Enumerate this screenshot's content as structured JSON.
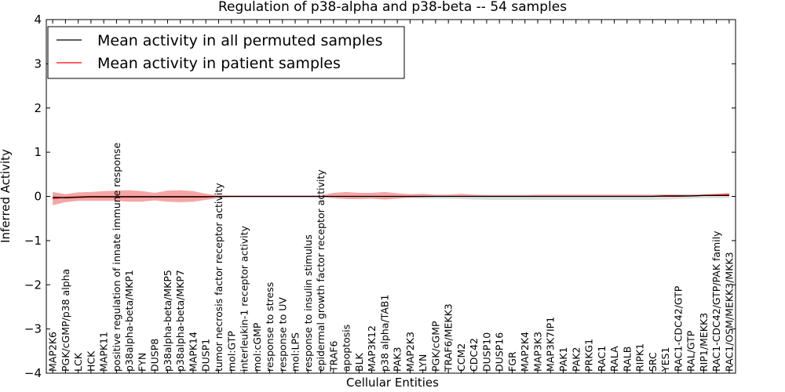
{
  "chart_data": {
    "type": "line",
    "title": "Regulation of p38-alpha and p38-beta -- 54 samples",
    "xlabel": "Cellular Entities",
    "ylabel": "Inferred Activity",
    "ylim": [
      -4,
      4
    ],
    "yticks": [
      -4,
      -3,
      -2,
      -1,
      0,
      1,
      2,
      3,
      4
    ],
    "ytick_labels": [
      "−4",
      "−3",
      "−2",
      "−1",
      "0",
      "1",
      "2",
      "3",
      "4"
    ],
    "legend_position": "upper-left",
    "categories": [
      "MAP2K6",
      "PGK/cGMP/p38 alpha",
      "LCK",
      "HCK",
      "MAPK11",
      "positive regulation of innate immune response",
      "p38alpha-beta/MKP1",
      "FYN",
      "DUSP8",
      "p38alpha-beta/MKP5",
      "p38alpha-beta/MKP7",
      "MAPK14",
      "DUSP1",
      "tumor necrosis factor receptor activity",
      "mol:GTP",
      "interleukin-1 receptor activity",
      "mol:cGMP",
      "response to stress",
      "response to UV",
      "mol:LPS",
      "response to insulin stimulus",
      "epidermal growth factor receptor activity",
      "TRAF6",
      "apoptosis",
      "BLK",
      "MAP3K12",
      "p38 alpha/TAB1",
      "PAK3",
      "MAP2K3",
      "LYN",
      "PGK/cGMP",
      "TRAF6/MEKK3",
      "CCM2",
      "CDC42",
      "DUSP10",
      "DUSP16",
      "FGR",
      "MAP2K4",
      "MAP3K3",
      "MAP3K7IP1",
      "PAK1",
      "PAK2",
      "PRKG1",
      "RAC1",
      "RALA",
      "RALB",
      "RIPK1",
      "SRC",
      "YES1",
      "RAC1-CDC42/GTP",
      "RAL/GTP",
      "RIP1/MEKK3",
      "RAC1-CDC42/GTP/PAK family",
      "RAC1/OSM/MEKK3/MKK3"
    ],
    "series": [
      {
        "name": "Mean activity in all permuted samples",
        "color": "#000000",
        "band_color": "#b8b8b8",
        "values": [
          -0.02,
          -0.03,
          -0.02,
          -0.01,
          -0.01,
          -0.01,
          -0.01,
          -0.01,
          -0.01,
          -0.01,
          -0.01,
          -0.01,
          -0.01,
          0,
          0,
          0,
          0,
          0,
          0,
          0,
          0,
          0,
          0,
          0,
          0,
          0,
          0,
          0,
          0,
          0,
          0,
          0,
          0,
          0,
          0,
          0,
          0,
          0,
          0,
          0,
          0,
          0,
          0,
          0,
          0,
          0,
          0,
          0,
          0.01,
          0.01,
          0.01,
          0.02,
          0.02,
          0.02
        ],
        "band_lower": [
          -0.06,
          -0.06,
          -0.05,
          -0.04,
          -0.04,
          -0.04,
          -0.04,
          -0.03,
          -0.03,
          -0.03,
          -0.03,
          -0.03,
          -0.03,
          -0.02,
          -0.02,
          -0.02,
          -0.02,
          -0.02,
          -0.02,
          -0.02,
          -0.02,
          -0.02,
          -0.02,
          -0.02,
          -0.02,
          -0.02,
          -0.02,
          -0.03,
          -0.04,
          -0.05,
          -0.05,
          -0.05,
          -0.06,
          -0.07,
          -0.08,
          -0.08,
          -0.08,
          -0.08,
          -0.08,
          -0.08,
          -0.08,
          -0.08,
          -0.08,
          -0.08,
          -0.08,
          -0.08,
          -0.08,
          -0.08,
          -0.07,
          -0.06,
          -0.05,
          -0.04,
          -0.04,
          -0.04
        ],
        "band_upper": [
          0.02,
          0.02,
          0.02,
          0.02,
          0.02,
          0.02,
          0.02,
          0.02,
          0.02,
          0.02,
          0.02,
          0.02,
          0.02,
          0.02,
          0.02,
          0.02,
          0.02,
          0.02,
          0.02,
          0.02,
          0.02,
          0.02,
          0.02,
          0.02,
          0.02,
          0.02,
          0.02,
          0.02,
          0.02,
          0.02,
          0.02,
          0.02,
          0.02,
          0.03,
          0.03,
          0.03,
          0.03,
          0.03,
          0.03,
          0.03,
          0.03,
          0.03,
          0.03,
          0.03,
          0.03,
          0.03,
          0.03,
          0.03,
          0.04,
          0.04,
          0.04,
          0.05,
          0.05,
          0.05
        ]
      },
      {
        "name": "Mean activity in patient samples",
        "color": "#ff0000",
        "band_color": "#f08080",
        "values": [
          -0.05,
          -0.02,
          -0.01,
          0,
          0,
          0,
          0,
          0,
          0,
          0,
          0,
          0,
          0,
          0,
          0,
          0,
          0,
          0,
          0,
          0,
          0,
          0,
          0,
          0,
          0,
          0,
          0,
          0,
          0,
          0,
          0,
          0,
          0,
          0,
          0,
          0,
          0,
          0,
          0,
          0,
          0,
          0,
          0,
          0,
          0,
          0,
          0,
          0,
          0,
          0,
          0.01,
          0.02,
          0.03,
          0.04
        ],
        "band_lower": [
          -0.2,
          -0.13,
          -0.1,
          -0.1,
          -0.1,
          -0.1,
          -0.12,
          -0.12,
          -0.09,
          -0.12,
          -0.13,
          -0.12,
          -0.08,
          -0.04,
          -0.02,
          -0.02,
          -0.02,
          -0.02,
          -0.02,
          -0.02,
          -0.02,
          -0.02,
          -0.04,
          -0.06,
          -0.06,
          -0.05,
          -0.07,
          -0.05,
          -0.03,
          -0.02,
          -0.01,
          -0.01,
          0,
          0,
          0,
          0,
          0,
          0,
          0,
          0,
          0,
          0,
          0,
          0,
          0,
          0,
          0,
          0,
          0,
          0,
          0,
          0.01,
          0.01,
          0.02
        ],
        "band_upper": [
          0.1,
          0.05,
          0.09,
          0.1,
          0.12,
          0.13,
          0.14,
          0.12,
          0.08,
          0.13,
          0.14,
          0.12,
          0.06,
          0.02,
          0.02,
          0.02,
          0.02,
          0.02,
          0.02,
          0.02,
          0.02,
          0.02,
          0.08,
          0.1,
          0.08,
          0.08,
          0.1,
          0.07,
          0.05,
          0.06,
          0.04,
          0.04,
          0.06,
          0.04,
          0.03,
          0.03,
          0.03,
          0.03,
          0.04,
          0.04,
          0.04,
          0.04,
          0.04,
          0.04,
          0.04,
          0.04,
          0.04,
          0.04,
          0.04,
          0.04,
          0.04,
          0.05,
          0.06,
          0.08
        ]
      }
    ]
  }
}
